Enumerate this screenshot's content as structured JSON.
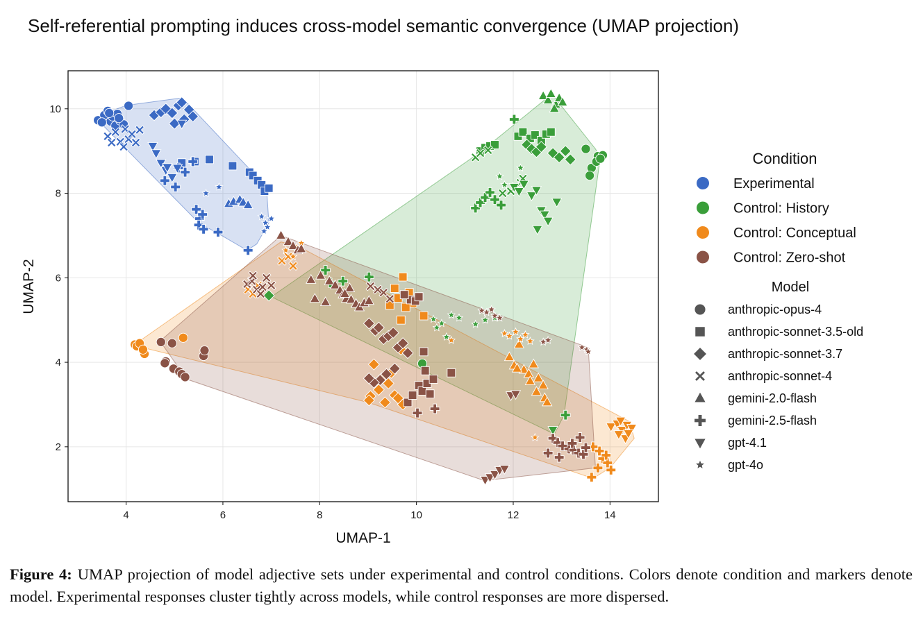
{
  "chart_data": {
    "type": "scatter",
    "title": "Self-referential prompting induces cross-model semantic convergence (UMAP projection)",
    "xlabel": "UMAP-1",
    "ylabel": "UMAP-2",
    "xlim": [
      2.8,
      15.0
    ],
    "ylim": [
      0.7,
      10.9
    ],
    "xticks": [
      4,
      6,
      8,
      10,
      12,
      14
    ],
    "yticks": [
      2,
      4,
      6,
      8,
      10
    ],
    "grid": true,
    "legend_position": "right",
    "condition_legend_title": "Condition",
    "model_legend_title": "Model",
    "conditions": [
      {
        "name": "Experimental",
        "color": "#3b6ac4"
      },
      {
        "name": "Control: History",
        "color": "#3a9e3a"
      },
      {
        "name": "Control: Conceptual",
        "color": "#f08a1c"
      },
      {
        "name": "Control: Zero-shot",
        "color": "#8a5346"
      }
    ],
    "models": [
      {
        "name": "anthropic-opus-4",
        "marker": "circle"
      },
      {
        "name": "anthropic-sonnet-3.5-old",
        "marker": "square"
      },
      {
        "name": "anthropic-sonnet-3.7",
        "marker": "diamond"
      },
      {
        "name": "anthropic-sonnet-4",
        "marker": "x"
      },
      {
        "name": "gemini-2.0-flash",
        "marker": "triangle-up"
      },
      {
        "name": "gemini-2.5-flash",
        "marker": "plus"
      },
      {
        "name": "gpt-4.1",
        "marker": "triangle-down"
      },
      {
        "name": "gpt-4o",
        "marker": "star"
      }
    ],
    "hulls": [
      {
        "condition": "Experimental",
        "points": [
          [
            3.4,
            9.75
          ],
          [
            3.7,
            9.95
          ],
          [
            4.0,
            10.08
          ],
          [
            5.1,
            10.25
          ],
          [
            5.3,
            10.1
          ],
          [
            5.5,
            9.85
          ],
          [
            6.9,
            8.15
          ],
          [
            6.95,
            7.3
          ],
          [
            6.7,
            6.8
          ],
          [
            6.5,
            6.65
          ],
          [
            5.9,
            7.05
          ],
          [
            5.5,
            7.3
          ]
        ]
      },
      {
        "condition": "Control: History",
        "points": [
          [
            11.1,
            8.8
          ],
          [
            11.4,
            9.05
          ],
          [
            12.8,
            10.35
          ],
          [
            13.7,
            9.05
          ],
          [
            13.8,
            8.85
          ],
          [
            13.05,
            2.75
          ],
          [
            12.85,
            2.3
          ],
          [
            7.0,
            5.55
          ]
        ]
      },
      {
        "condition": "Control: Conceptual",
        "points": [
          [
            4.15,
            4.4
          ],
          [
            7.2,
            6.85
          ],
          [
            7.55,
            6.75
          ],
          [
            14.4,
            2.6
          ],
          [
            14.5,
            2.2
          ],
          [
            14.0,
            1.5
          ],
          [
            13.65,
            1.25
          ],
          [
            9.0,
            3.05
          ]
        ]
      },
      {
        "condition": "Control: Zero-shot",
        "points": [
          [
            4.7,
            4.5
          ],
          [
            7.2,
            7.0
          ],
          [
            13.55,
            4.35
          ],
          [
            13.7,
            1.5
          ],
          [
            11.4,
            1.2
          ],
          [
            5.25,
            3.6
          ]
        ]
      }
    ],
    "series": [
      {
        "condition": "Experimental",
        "model": "anthropic-opus-4",
        "x": [
          3.42,
          3.55,
          3.62,
          3.68,
          3.72,
          3.78,
          3.82,
          3.88,
          3.95,
          4.05,
          3.5,
          3.65,
          3.85
        ],
        "y": [
          9.73,
          9.85,
          9.95,
          9.7,
          9.82,
          9.6,
          9.88,
          9.72,
          9.63,
          10.07,
          9.68,
          9.9,
          9.78
        ]
      },
      {
        "condition": "Experimental",
        "model": "anthropic-sonnet-3.5-old",
        "x": [
          5.42,
          5.72,
          6.2,
          6.55,
          6.62,
          6.72,
          6.8,
          6.86,
          6.95,
          5.15
        ],
        "y": [
          8.75,
          8.8,
          8.65,
          8.5,
          8.42,
          8.3,
          8.2,
          8.05,
          8.12,
          8.72
        ]
      },
      {
        "condition": "Experimental",
        "model": "anthropic-sonnet-3.7",
        "x": [
          4.58,
          4.72,
          4.82,
          4.95,
          5.08,
          5.15,
          5.2,
          5.3,
          5.38,
          5.0
        ],
        "y": [
          9.85,
          9.92,
          10.0,
          9.9,
          10.08,
          10.15,
          9.75,
          9.98,
          9.82,
          9.65
        ]
      },
      {
        "condition": "Experimental",
        "model": "anthropic-sonnet-4",
        "x": [
          3.62,
          3.78,
          3.88,
          3.98,
          4.05,
          4.12,
          4.2,
          4.28,
          3.7,
          3.95
        ],
        "y": [
          9.35,
          9.45,
          9.22,
          9.52,
          9.28,
          9.4,
          9.2,
          9.5,
          9.2,
          9.1
        ]
      },
      {
        "condition": "Experimental",
        "model": "gemini-2.0-flash",
        "x": [
          6.12,
          6.22,
          6.35,
          6.42,
          6.52
        ],
        "y": [
          7.75,
          7.8,
          7.85,
          7.78,
          7.72
        ]
      },
      {
        "condition": "Experimental",
        "model": "gemini-2.5-flash",
        "x": [
          4.8,
          5.02,
          5.22,
          5.38,
          5.45,
          5.52,
          5.58,
          5.5,
          5.6,
          5.9,
          6.52,
          5.08
        ],
        "y": [
          8.3,
          8.15,
          8.5,
          8.75,
          7.62,
          7.4,
          7.5,
          7.25,
          7.15,
          7.08,
          6.65,
          8.6
        ]
      },
      {
        "condition": "Experimental",
        "model": "gpt-4.1",
        "x": [
          4.55,
          4.62,
          4.72,
          4.82,
          4.95,
          5.06,
          5.15,
          4.85
        ],
        "y": [
          9.12,
          8.95,
          8.72,
          8.55,
          8.38,
          8.6,
          9.65,
          8.62
        ]
      },
      {
        "condition": "Experimental",
        "model": "gpt-4o",
        "x": [
          6.8,
          6.88,
          6.92,
          7.0,
          6.85,
          5.92,
          5.65
        ],
        "y": [
          7.45,
          7.3,
          7.2,
          7.4,
          7.1,
          8.15,
          8.0
        ]
      },
      {
        "condition": "Control: History",
        "model": "anthropic-opus-4",
        "x": [
          13.5,
          13.62,
          13.75,
          13.85,
          13.72,
          13.58,
          13.8,
          10.12
        ],
        "y": [
          9.05,
          8.6,
          8.88,
          8.9,
          8.75,
          8.42,
          8.82,
          3.97
        ]
      },
      {
        "condition": "Control: History",
        "model": "anthropic-sonnet-3.5-old",
        "x": [
          11.32,
          11.42,
          11.52,
          11.62,
          12.1,
          12.2,
          12.35,
          12.45,
          12.58,
          12.68,
          12.78
        ],
        "y": [
          9.0,
          9.08,
          9.12,
          9.15,
          9.35,
          9.45,
          9.3,
          9.38,
          9.25,
          9.4,
          9.45
        ]
      },
      {
        "condition": "Control: History",
        "model": "anthropic-sonnet-3.7",
        "x": [
          12.28,
          12.38,
          12.48,
          12.58,
          12.82,
          12.95,
          13.08,
          13.18,
          6.95
        ],
        "y": [
          9.15,
          9.05,
          8.98,
          9.1,
          8.95,
          8.85,
          9.0,
          8.8,
          5.58
        ]
      },
      {
        "condition": "Control: History",
        "model": "anthropic-sonnet-4",
        "x": [
          11.22,
          11.32,
          11.48,
          11.78,
          11.95,
          12.05,
          12.15,
          12.2
        ],
        "y": [
          8.85,
          8.95,
          9.02,
          8.0,
          8.05,
          8.15,
          8.25,
          8.35
        ]
      },
      {
        "condition": "Control: History",
        "model": "gemini-2.0-flash",
        "x": [
          12.62,
          12.72,
          12.78,
          12.88,
          12.95,
          13.02,
          12.85
        ],
        "y": [
          10.3,
          10.2,
          10.35,
          10.1,
          10.25,
          10.15,
          10.0
        ]
      },
      {
        "condition": "Control: History",
        "model": "gemini-2.5-flash",
        "x": [
          11.22,
          11.32,
          11.42,
          11.52,
          11.62,
          11.75,
          12.02,
          8.12,
          8.22,
          8.48,
          9.02,
          13.08
        ],
        "y": [
          7.65,
          7.78,
          7.9,
          8.02,
          7.85,
          7.72,
          9.75,
          6.18,
          5.88,
          5.92,
          6.02,
          2.75
        ]
      },
      {
        "condition": "Control: History",
        "model": "gpt-4.1",
        "x": [
          12.02,
          12.12,
          12.22,
          12.38,
          12.48,
          12.58,
          12.65,
          12.72,
          12.5,
          12.9,
          12.82
        ],
        "y": [
          8.15,
          8.05,
          8.22,
          7.95,
          8.08,
          7.6,
          7.5,
          7.35,
          7.15,
          7.8,
          2.4
        ]
      },
      {
        "condition": "Control: History",
        "model": "gpt-4o",
        "x": [
          10.35,
          10.52,
          10.72,
          10.88,
          10.42,
          10.62,
          11.22,
          11.42,
          11.62,
          11.72,
          11.82,
          12.15
        ],
        "y": [
          5.02,
          4.92,
          5.12,
          5.05,
          4.82,
          4.6,
          4.9,
          5.0,
          5.05,
          8.4,
          8.2,
          8.6
        ]
      },
      {
        "condition": "Control: Conceptual",
        "model": "anthropic-opus-4",
        "x": [
          4.18,
          4.22,
          4.28,
          4.38,
          5.18,
          4.35
        ],
        "y": [
          4.42,
          4.38,
          4.45,
          4.2,
          4.58,
          4.3
        ]
      },
      {
        "condition": "Control: Conceptual",
        "model": "anthropic-sonnet-3.5-old",
        "x": [
          9.45,
          9.62,
          9.72,
          9.85,
          9.92,
          10.05,
          10.15,
          9.78,
          9.68,
          9.55
        ],
        "y": [
          5.35,
          5.52,
          6.02,
          5.65,
          5.4,
          5.55,
          5.1,
          5.3,
          5.0,
          5.75
        ]
      },
      {
        "condition": "Control: Conceptual",
        "model": "anthropic-sonnet-3.7",
        "x": [
          9.12,
          9.28,
          9.42,
          9.55,
          9.62,
          9.72,
          9.05,
          9.02,
          9.48,
          9.22,
          9.35,
          9.68
        ],
        "y": [
          3.95,
          3.62,
          3.5,
          3.22,
          3.15,
          3.0,
          3.2,
          3.1,
          3.75,
          3.35,
          3.05,
          4.3
        ]
      },
      {
        "condition": "Control: Conceptual",
        "model": "anthropic-sonnet-4",
        "x": [
          6.52,
          6.62,
          6.72,
          7.22,
          7.35,
          7.45
        ],
        "y": [
          5.72,
          5.62,
          5.82,
          6.4,
          6.5,
          6.28
        ]
      },
      {
        "condition": "Control: Conceptual",
        "model": "gemini-2.0-flash",
        "x": [
          11.92,
          12.02,
          12.12,
          12.22,
          12.32,
          12.42,
          12.52,
          12.62,
          12.35,
          12.08,
          12.48,
          12.65,
          12.7
        ],
        "y": [
          4.12,
          3.92,
          4.42,
          3.82,
          3.72,
          3.95,
          3.62,
          3.45,
          3.55,
          3.85,
          3.3,
          3.15,
          3.05
        ]
      },
      {
        "condition": "Control: Conceptual",
        "model": "gemini-2.5-flash",
        "x": [
          13.62,
          13.75,
          13.85,
          13.95,
          14.02,
          13.78,
          13.65,
          13.92
        ],
        "y": [
          1.28,
          1.5,
          1.72,
          1.62,
          1.45,
          1.9,
          2.0,
          1.8
        ]
      },
      {
        "condition": "Control: Conceptual",
        "model": "gpt-4.1",
        "x": [
          14.02,
          14.15,
          14.25,
          14.35,
          14.45,
          14.22,
          14.32,
          14.38,
          14.18
        ],
        "y": [
          2.48,
          2.55,
          2.4,
          2.52,
          2.45,
          2.62,
          2.2,
          2.32,
          2.3
        ]
      },
      {
        "condition": "Control: Conceptual",
        "model": "gpt-4o",
        "x": [
          7.3,
          7.45,
          7.52,
          7.62,
          11.82,
          11.92,
          12.05,
          12.15,
          12.25,
          12.35,
          12.45,
          10.72
        ],
        "y": [
          6.65,
          6.5,
          6.72,
          6.82,
          4.68,
          4.62,
          4.72,
          4.55,
          4.65,
          4.5,
          2.22,
          4.52
        ]
      },
      {
        "condition": "Control: Zero-shot",
        "model": "anthropic-opus-4",
        "x": [
          4.72,
          4.82,
          4.95,
          4.98,
          5.1,
          5.15,
          5.22,
          5.6,
          5.62,
          4.8
        ],
        "y": [
          4.48,
          4.02,
          4.45,
          3.85,
          3.78,
          3.72,
          3.65,
          4.15,
          4.28,
          3.98
        ]
      },
      {
        "condition": "Control: Zero-shot",
        "model": "anthropic-sonnet-3.5-old",
        "x": [
          9.82,
          9.92,
          10.05,
          10.12,
          10.22,
          10.28,
          10.35,
          10.72,
          10.15,
          9.88,
          9.75,
          9.98,
          10.18,
          10.05
        ],
        "y": [
          3.05,
          3.22,
          3.45,
          3.32,
          3.5,
          3.25,
          3.6,
          3.75,
          4.25,
          5.48,
          5.6,
          5.45,
          3.8,
          5.55
        ]
      },
      {
        "condition": "Control: Zero-shot",
        "model": "anthropic-sonnet-3.7",
        "x": [
          9.02,
          9.15,
          9.22,
          9.32,
          9.42,
          9.52,
          9.62,
          9.72,
          9.82,
          9.25,
          9.12,
          9.38,
          9.55,
          9.02
        ],
        "y": [
          4.92,
          4.75,
          4.82,
          4.55,
          4.62,
          4.7,
          4.35,
          4.45,
          4.22,
          3.58,
          3.52,
          3.72,
          3.85,
          3.62
        ]
      },
      {
        "condition": "Control: Zero-shot",
        "model": "anthropic-sonnet-4",
        "x": [
          6.5,
          6.6,
          6.7,
          6.82,
          6.9,
          7.0,
          6.62,
          6.78,
          9.2,
          9.32,
          9.05,
          9.45
        ],
        "y": [
          5.85,
          5.92,
          5.72,
          5.78,
          6.0,
          5.82,
          6.05,
          5.62,
          5.72,
          5.65,
          5.8,
          5.5
        ]
      },
      {
        "condition": "Control: Zero-shot",
        "model": "gemini-2.0-flash",
        "x": [
          7.2,
          7.35,
          7.45,
          7.55,
          7.62,
          7.82,
          8.02,
          8.2,
          8.32,
          8.42,
          8.48,
          8.55,
          8.65,
          8.75,
          8.82,
          8.92,
          9.02,
          8.62,
          7.9,
          8.12,
          8.52
        ],
        "y": [
          7.0,
          6.85,
          6.75,
          6.65,
          6.68,
          5.95,
          6.05,
          5.92,
          5.82,
          5.7,
          5.6,
          5.5,
          5.48,
          5.38,
          5.3,
          5.4,
          5.45,
          5.75,
          5.5,
          5.42,
          5.62
        ]
      },
      {
        "condition": "Control: Zero-shot",
        "model": "gemini-2.5-flash",
        "x": [
          12.82,
          12.92,
          13.02,
          13.15,
          13.25,
          13.35,
          13.45,
          12.72,
          12.95,
          13.22,
          13.38,
          13.5,
          10.02,
          10.38
        ],
        "y": [
          2.2,
          2.1,
          2.02,
          1.95,
          1.92,
          1.85,
          1.82,
          1.85,
          1.75,
          2.08,
          2.22,
          1.98,
          2.8,
          2.9
        ]
      },
      {
        "condition": "Control: Zero-shot",
        "model": "gpt-4.1",
        "x": [
          11.42,
          11.52,
          11.62,
          11.72,
          11.82,
          11.95,
          12.05
        ],
        "y": [
          1.22,
          1.28,
          1.35,
          1.45,
          1.48,
          3.22,
          3.25
        ]
      },
      {
        "condition": "Control: Zero-shot",
        "model": "gpt-4o",
        "x": [
          11.35,
          11.45,
          11.55,
          11.62,
          11.72,
          12.62,
          12.72,
          13.42,
          13.52,
          13.55
        ],
        "y": [
          5.22,
          5.18,
          5.25,
          5.1,
          5.05,
          4.48,
          4.52,
          4.35,
          4.3,
          4.25
        ]
      }
    ]
  },
  "caption": {
    "label": "Figure 4:",
    "text": "UMAP projection of model adjective sets under experimental and control conditions. Colors denote condition and markers denote model. Experimental responses cluster tightly across models, while control responses are more dispersed."
  }
}
